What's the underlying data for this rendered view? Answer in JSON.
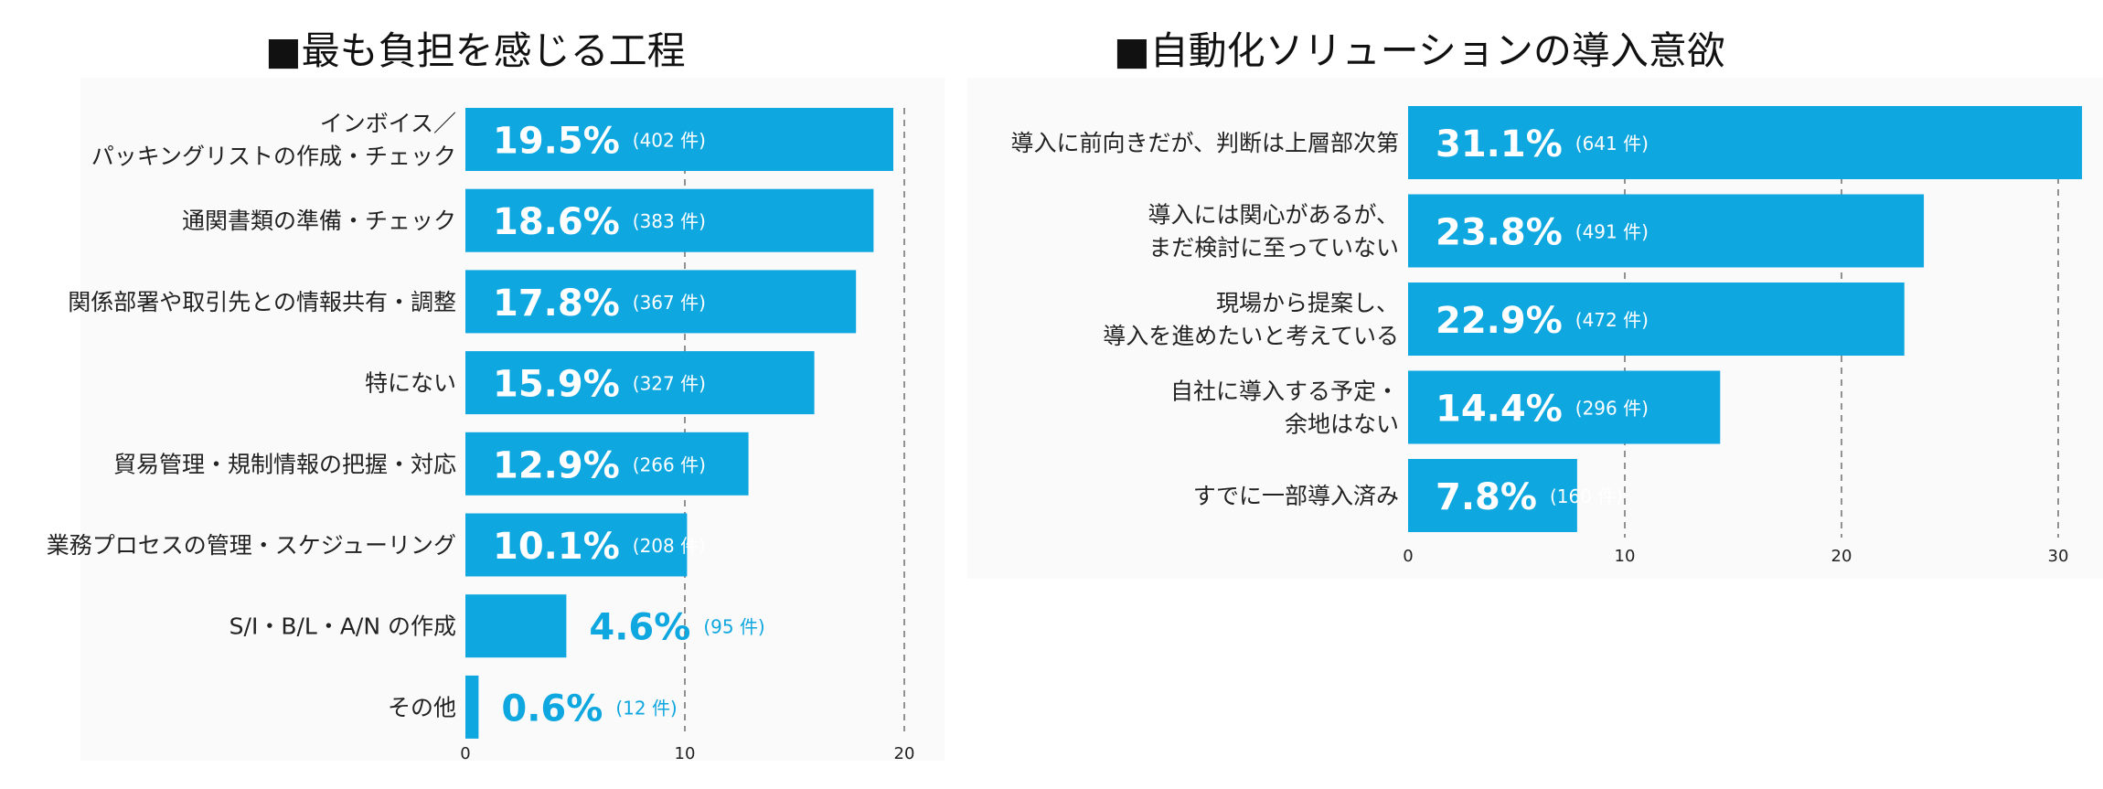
{
  "chart_data": [
    {
      "type": "bar",
      "orientation": "horizontal",
      "title": "■最も負担を感じる工程",
      "categories": [
        [
          "インボイス／",
          "パッキングリストの作成・チェック"
        ],
        [
          "通関書類の準備・チェック"
        ],
        [
          "関係部署や取引先との情報共有・調整"
        ],
        [
          "特にない"
        ],
        [
          "貿易管理・規制情報の把握・対応"
        ],
        [
          "業務プロセスの管理・スケジューリング"
        ],
        [
          "S/I・B/L・A/N の作成"
        ],
        [
          "その他"
        ]
      ],
      "values": [
        19.5,
        18.6,
        17.8,
        15.9,
        12.9,
        10.1,
        4.6,
        0.6
      ],
      "percent_labels": [
        "19.5%",
        "18.6%",
        "17.8%",
        "15.9%",
        "12.9%",
        "10.1%",
        "4.6%",
        "0.6%"
      ],
      "count_labels": [
        "(402 件)",
        "(383 件)",
        "(367 件)",
        "(327 件)",
        "(266 件)",
        "(208 件)",
        "(95 件)",
        "(12 件)"
      ],
      "xticks": [
        "0",
        "10",
        "20"
      ],
      "xlim": [
        0,
        20
      ],
      "grid": "vertical dashed",
      "bar_color": "#0fa7e0"
    },
    {
      "type": "bar",
      "orientation": "horizontal",
      "title": "■自動化ソリューションの導入意欲",
      "categories": [
        [
          "導入に前向きだが、判断は上層部次第"
        ],
        [
          "導入には関心があるが、",
          "まだ検討に至っていない"
        ],
        [
          "現場から提案し、",
          "導入を進めたいと考えている"
        ],
        [
          "自社に導入する予定・",
          "余地はない"
        ],
        [
          "すでに一部導入済み"
        ]
      ],
      "values": [
        31.1,
        23.8,
        22.9,
        14.4,
        7.8
      ],
      "percent_labels": [
        "31.1%",
        "23.8%",
        "22.9%",
        "14.4%",
        "7.8%"
      ],
      "count_labels": [
        "(641 件)",
        "(491 件)",
        "(472 件)",
        "(296 件)",
        "(160 件)"
      ],
      "xticks": [
        "0",
        "10",
        "20",
        "30"
      ],
      "xlim": [
        0,
        31
      ],
      "grid": "vertical dashed",
      "bar_color": "#0fa7e0"
    }
  ]
}
